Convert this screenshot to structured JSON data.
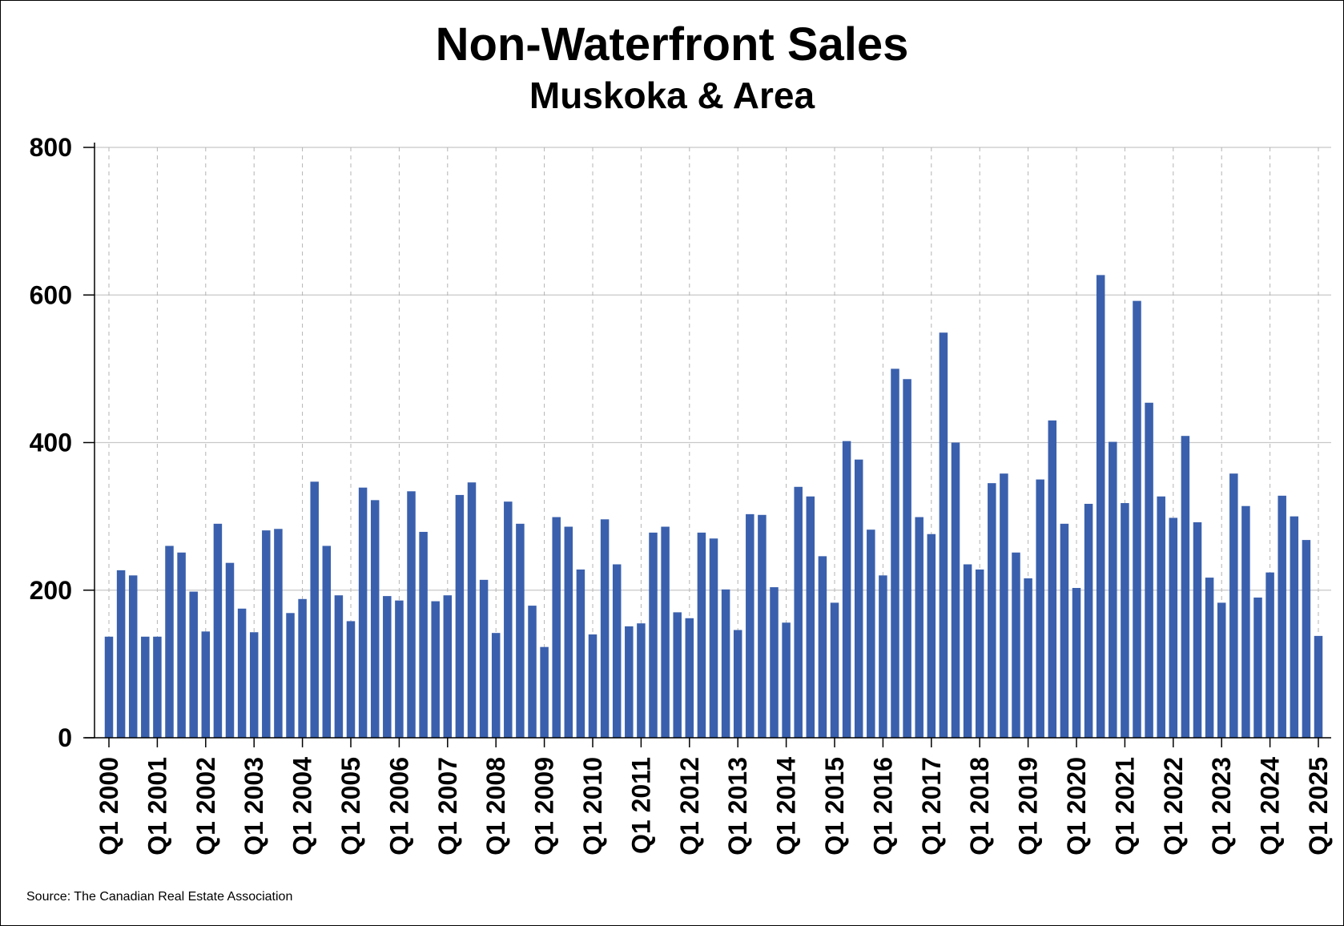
{
  "chart_data": {
    "type": "bar",
    "title": "Non-Waterfront Sales",
    "subtitle": "Muskoka & Area",
    "xlabel": "",
    "ylabel": "",
    "ylim": [
      0,
      800
    ],
    "yticks": [
      0,
      200,
      400,
      600,
      800
    ],
    "xtick_labels": [
      "Q1 2000",
      "Q1 2001",
      "Q1 2002",
      "Q1 2003",
      "Q1 2004",
      "Q1 2005",
      "Q1 2006",
      "Q1 2007",
      "Q1 2008",
      "Q1 2009",
      "Q1 2010",
      "Q1 2011",
      "Q1 2012",
      "Q1 2013",
      "Q1 2014",
      "Q1 2015",
      "Q1 2016",
      "Q1 2017",
      "Q1 2018",
      "Q1 2019",
      "Q1 2020",
      "Q1 2021",
      "Q1 2022",
      "Q1 2023",
      "Q1 2024",
      "Q1 2025"
    ],
    "grid": true,
    "bar_color": "#3a60ad",
    "categories": [
      "Q1 2000",
      "Q2 2000",
      "Q3 2000",
      "Q4 2000",
      "Q1 2001",
      "Q2 2001",
      "Q3 2001",
      "Q4 2001",
      "Q1 2002",
      "Q2 2002",
      "Q3 2002",
      "Q4 2002",
      "Q1 2003",
      "Q2 2003",
      "Q3 2003",
      "Q4 2003",
      "Q1 2004",
      "Q2 2004",
      "Q3 2004",
      "Q4 2004",
      "Q1 2005",
      "Q2 2005",
      "Q3 2005",
      "Q4 2005",
      "Q1 2006",
      "Q2 2006",
      "Q3 2006",
      "Q4 2006",
      "Q1 2007",
      "Q2 2007",
      "Q3 2007",
      "Q4 2007",
      "Q1 2008",
      "Q2 2008",
      "Q3 2008",
      "Q4 2008",
      "Q1 2009",
      "Q2 2009",
      "Q3 2009",
      "Q4 2009",
      "Q1 2010",
      "Q2 2010",
      "Q3 2010",
      "Q4 2010",
      "Q1 2011",
      "Q2 2011",
      "Q3 2011",
      "Q4 2011",
      "Q1 2012",
      "Q2 2012",
      "Q3 2012",
      "Q4 2012",
      "Q1 2013",
      "Q2 2013",
      "Q3 2013",
      "Q4 2013",
      "Q1 2014",
      "Q2 2014",
      "Q3 2014",
      "Q4 2014",
      "Q1 2015",
      "Q2 2015",
      "Q3 2015",
      "Q4 2015",
      "Q1 2016",
      "Q2 2016",
      "Q3 2016",
      "Q4 2016",
      "Q1 2017",
      "Q2 2017",
      "Q3 2017",
      "Q4 2017",
      "Q1 2018",
      "Q2 2018",
      "Q3 2018",
      "Q4 2018",
      "Q1 2019",
      "Q2 2019",
      "Q3 2019",
      "Q4 2019",
      "Q1 2020",
      "Q2 2020",
      "Q3 2020",
      "Q4 2020",
      "Q1 2021",
      "Q2 2021",
      "Q3 2021",
      "Q4 2021",
      "Q1 2022",
      "Q2 2022",
      "Q3 2022",
      "Q4 2022",
      "Q1 2023",
      "Q2 2023",
      "Q3 2023",
      "Q4 2023",
      "Q1 2024",
      "Q2 2024",
      "Q3 2024",
      "Q4 2024",
      "Q1 2025"
    ],
    "values": [
      137,
      227,
      220,
      137,
      137,
      260,
      251,
      198,
      144,
      290,
      237,
      175,
      143,
      281,
      283,
      169,
      188,
      347,
      260,
      193,
      158,
      339,
      322,
      192,
      186,
      334,
      279,
      185,
      193,
      329,
      346,
      214,
      142,
      320,
      290,
      179,
      123,
      299,
      286,
      228,
      140,
      296,
      235,
      151,
      155,
      278,
      286,
      170,
      162,
      278,
      270,
      201,
      146,
      303,
      302,
      204,
      156,
      340,
      327,
      246,
      183,
      402,
      377,
      282,
      220,
      500,
      486,
      299,
      276,
      549,
      400,
      235,
      228,
      345,
      358,
      251,
      216,
      350,
      430,
      290,
      203,
      317,
      627,
      401,
      318,
      592,
      454,
      327,
      298,
      409,
      292,
      217,
      183,
      358,
      314,
      190,
      224,
      328,
      300,
      268,
      138
    ]
  },
  "source": "Source: The Canadian Real Estate Association"
}
